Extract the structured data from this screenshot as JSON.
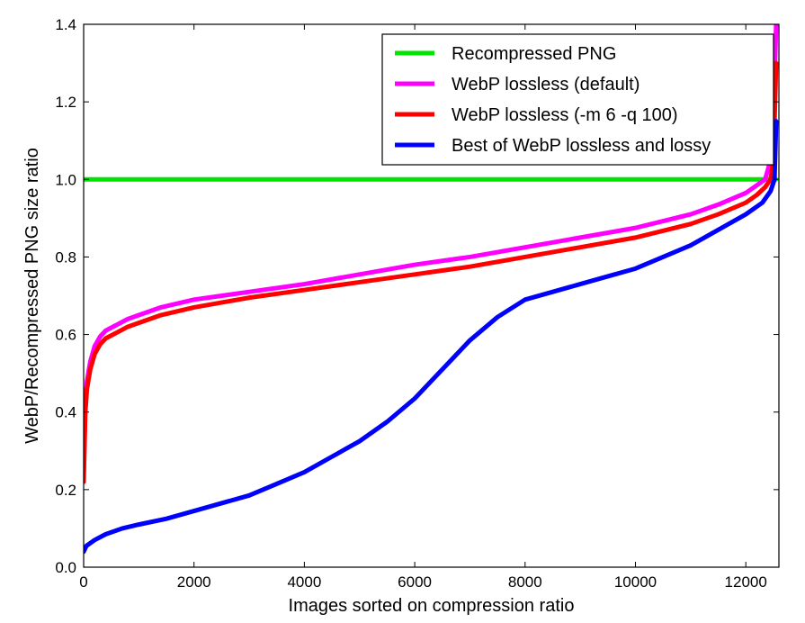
{
  "chart_data": {
    "type": "line",
    "title": "",
    "xlabel": "Images sorted on compression ratio",
    "ylabel": "WebP/Recompressed PNG size ratio",
    "xlim": [
      0,
      12600
    ],
    "ylim": [
      0.0,
      1.4
    ],
    "xticks": [
      0,
      2000,
      4000,
      6000,
      8000,
      10000,
      12000
    ],
    "yticks": [
      0.0,
      0.2,
      0.4,
      0.6,
      0.8,
      1.0,
      1.2,
      1.4
    ],
    "xtick_labels": [
      "0",
      "2000",
      "4000",
      "6000",
      "8000",
      "10000",
      "12000"
    ],
    "ytick_labels": [
      "0.0",
      "0.2",
      "0.4",
      "0.6",
      "0.8",
      "1.0",
      "1.2",
      "1.4"
    ],
    "grid": false,
    "legend_position": "top-right",
    "series": [
      {
        "name": "Recompressed PNG",
        "color": "#00e400",
        "x": [
          0,
          12550
        ],
        "y": [
          1.0,
          1.0
        ]
      },
      {
        "name": "WebP lossless (default)",
        "color": "#ff00ff",
        "x": [
          0,
          30,
          60,
          120,
          200,
          300,
          400,
          600,
          800,
          1000,
          1400,
          2000,
          3000,
          4000,
          5000,
          6000,
          7000,
          8000,
          9000,
          10000,
          11000,
          11500,
          12000,
          12200,
          12350,
          12450,
          12500,
          12550
        ],
        "y": [
          0.24,
          0.42,
          0.48,
          0.53,
          0.57,
          0.595,
          0.61,
          0.625,
          0.64,
          0.65,
          0.67,
          0.69,
          0.71,
          0.73,
          0.755,
          0.78,
          0.8,
          0.825,
          0.85,
          0.875,
          0.91,
          0.935,
          0.965,
          0.985,
          1.0,
          1.05,
          1.15,
          1.4
        ]
      },
      {
        "name": "WebP lossless (-m 6 -q 100)",
        "color": "#ff0000",
        "x": [
          0,
          30,
          60,
          120,
          200,
          300,
          400,
          600,
          800,
          1000,
          1400,
          2000,
          3000,
          4000,
          5000,
          6000,
          7000,
          8000,
          9000,
          10000,
          11000,
          11500,
          12000,
          12200,
          12350,
          12450,
          12500,
          12550
        ],
        "y": [
          0.22,
          0.4,
          0.46,
          0.51,
          0.55,
          0.575,
          0.59,
          0.605,
          0.62,
          0.63,
          0.65,
          0.67,
          0.695,
          0.715,
          0.735,
          0.755,
          0.775,
          0.8,
          0.825,
          0.85,
          0.885,
          0.91,
          0.94,
          0.96,
          0.98,
          1.0,
          1.05,
          1.3
        ]
      },
      {
        "name": "Best of WebP lossless and lossy",
        "color": "#0000ff",
        "x": [
          0,
          50,
          200,
          400,
          700,
          1000,
          1500,
          2000,
          2500,
          3000,
          3500,
          4000,
          4500,
          5000,
          5500,
          6000,
          6500,
          7000,
          7500,
          8000,
          8500,
          9000,
          9500,
          10000,
          10500,
          11000,
          11500,
          12000,
          12300,
          12450,
          12520,
          12550
        ],
        "y": [
          0.04,
          0.055,
          0.07,
          0.085,
          0.1,
          0.11,
          0.125,
          0.145,
          0.165,
          0.185,
          0.215,
          0.245,
          0.285,
          0.325,
          0.375,
          0.435,
          0.51,
          0.585,
          0.645,
          0.69,
          0.71,
          0.73,
          0.75,
          0.77,
          0.8,
          0.83,
          0.87,
          0.91,
          0.94,
          0.97,
          1.0,
          1.15
        ]
      }
    ]
  }
}
